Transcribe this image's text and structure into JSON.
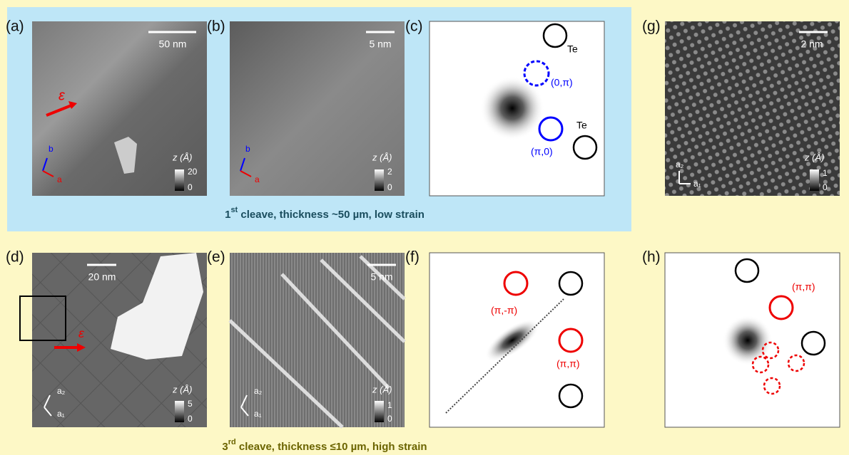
{
  "panels": {
    "a": {
      "label": "(a)",
      "scale_bar": "50 nm",
      "strain": "ε",
      "axis_b": "b",
      "axis_a": "a",
      "colorbar": {
        "title": "z (Å)",
        "max": "20",
        "min": "0"
      }
    },
    "b": {
      "label": "(b)",
      "scale_bar": "5 nm",
      "axis_b": "b",
      "axis_a": "a",
      "colorbar": {
        "title": "z (Å)",
        "max": "2",
        "min": "0"
      }
    },
    "c": {
      "label": "(c)",
      "peaks": [
        "Te",
        "(0,π)",
        "(π,0)",
        "Te"
      ]
    },
    "g": {
      "label": "(g)",
      "scale_bar": "2 nm",
      "axis_a2": "a₂",
      "axis_a1": "a₁",
      "colorbar": {
        "title": "z (Å)",
        "max": "1",
        "min": "0"
      }
    },
    "d": {
      "label": "(d)",
      "scale_bar": "20 nm",
      "strain": "ε",
      "axis_a2": "a₂",
      "axis_a1": "a₁",
      "colorbar": {
        "title": "z (Å)",
        "max": "5",
        "min": "0"
      }
    },
    "e": {
      "label": "(e)",
      "scale_bar": "5 nm",
      "axis_a2": "a₂",
      "axis_a1": "a₁",
      "colorbar": {
        "title": "z (Å)",
        "max": "1",
        "min": "0"
      }
    },
    "f": {
      "label": "(f)",
      "peaks": [
        "(π,-π)",
        "(π,π)"
      ]
    },
    "h": {
      "label": "(h)",
      "peaks": [
        "(π,π)"
      ]
    }
  },
  "captions": [
    {
      "number": "1",
      "superscript": "st",
      "text": " cleave, thickness ~50 µm, low strain"
    },
    {
      "number": "3",
      "superscript": "rd",
      "text": " cleave, thickness ≤10 µm, high strain"
    }
  ]
}
